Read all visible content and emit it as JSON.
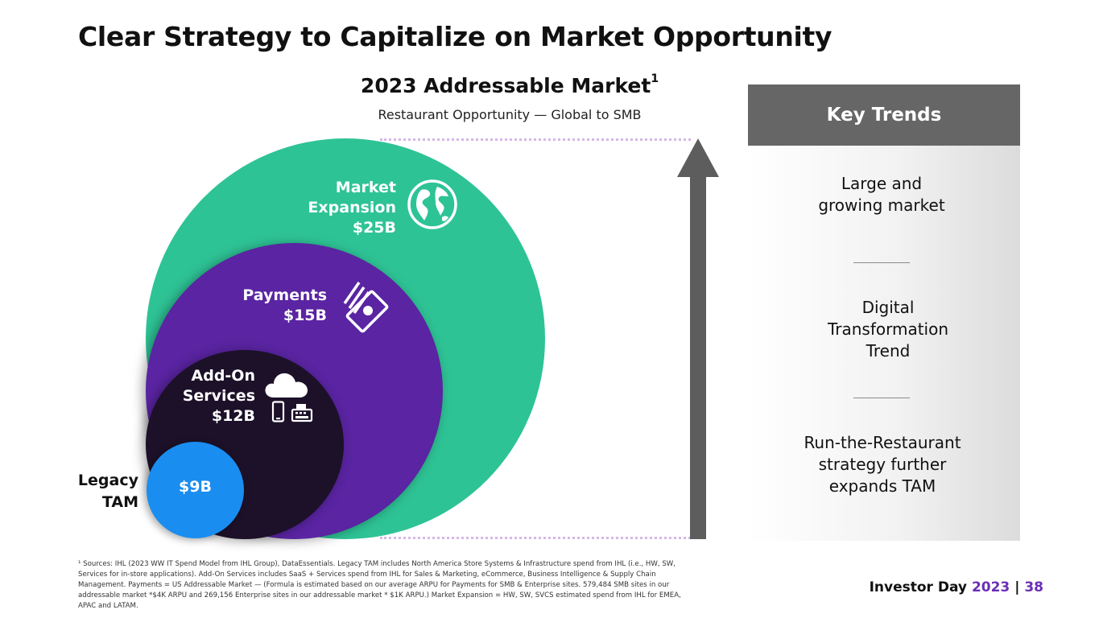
{
  "title": "Clear Strategy to Capitalize on Market Opportunity",
  "market": {
    "title": "2023 Addressable Market",
    "footnote_mark": "1",
    "subtitle": "Restaurant Opportunity — Global to SMB"
  },
  "segments": {
    "market_expansion": {
      "lines": [
        "Market",
        "Expansion"
      ],
      "value": "$25B",
      "color": "#2ec395",
      "icon": "globe-icon"
    },
    "payments": {
      "lines": [
        "Payments"
      ],
      "value": "$15B",
      "color": "#5a24a2",
      "icon": "money-icon"
    },
    "add_on": {
      "lines": [
        "Add-On",
        "Services"
      ],
      "value": "$12B",
      "color": "#1c1129",
      "icons": [
        "cloud-icon",
        "phone-icon",
        "register-icon"
      ]
    },
    "legacy": {
      "lines": [
        "Legacy",
        "TAM"
      ],
      "value": "$9B",
      "color": "#1a8df0"
    }
  },
  "key_trends": {
    "header": "Key Trends",
    "trends": [
      {
        "lines": [
          "Large and",
          "growing market"
        ]
      },
      {
        "lines": [
          "Digital",
          "Transformation",
          "Trend"
        ]
      },
      {
        "lines": [
          "Run-the-Restaurant",
          "strategy further",
          "expands TAM"
        ]
      }
    ]
  },
  "footnote": [
    "¹ Sources: IHL (2023 WW IT Spend Model from IHL Group), DataEssentials. Legacy TAM includes North America Store Systems & Infrastructure spend from IHL (i.e., HW, SW,",
    "Services for in-store applications). Add-On Services includes SaaS + Services spend from IHL for Sales & Marketing, eCommerce, Business Intelligence & Supply Chain",
    "Management. Payments = US Addressable Market — (Formula is estimated based on our average ARPU for Payments for SMB & Enterprise sites. 579,484 SMB sites in our",
    "addressable market *$4K ARPU and 269,156 Enterprise sites in our addressable market * $1K ARPU.) Market Expansion = HW, SW, SVCS estimated spend from IHL for EMEA,",
    "APAC and LATAM."
  ],
  "brand": {
    "text": "Investor Day",
    "year": "2023",
    "separator": "|",
    "page": "38"
  },
  "colors": {
    "arrow": "#5d5d5d",
    "trend_header": "#666666",
    "accent": "#6a2eb5",
    "dots": "#d6b7e6"
  }
}
